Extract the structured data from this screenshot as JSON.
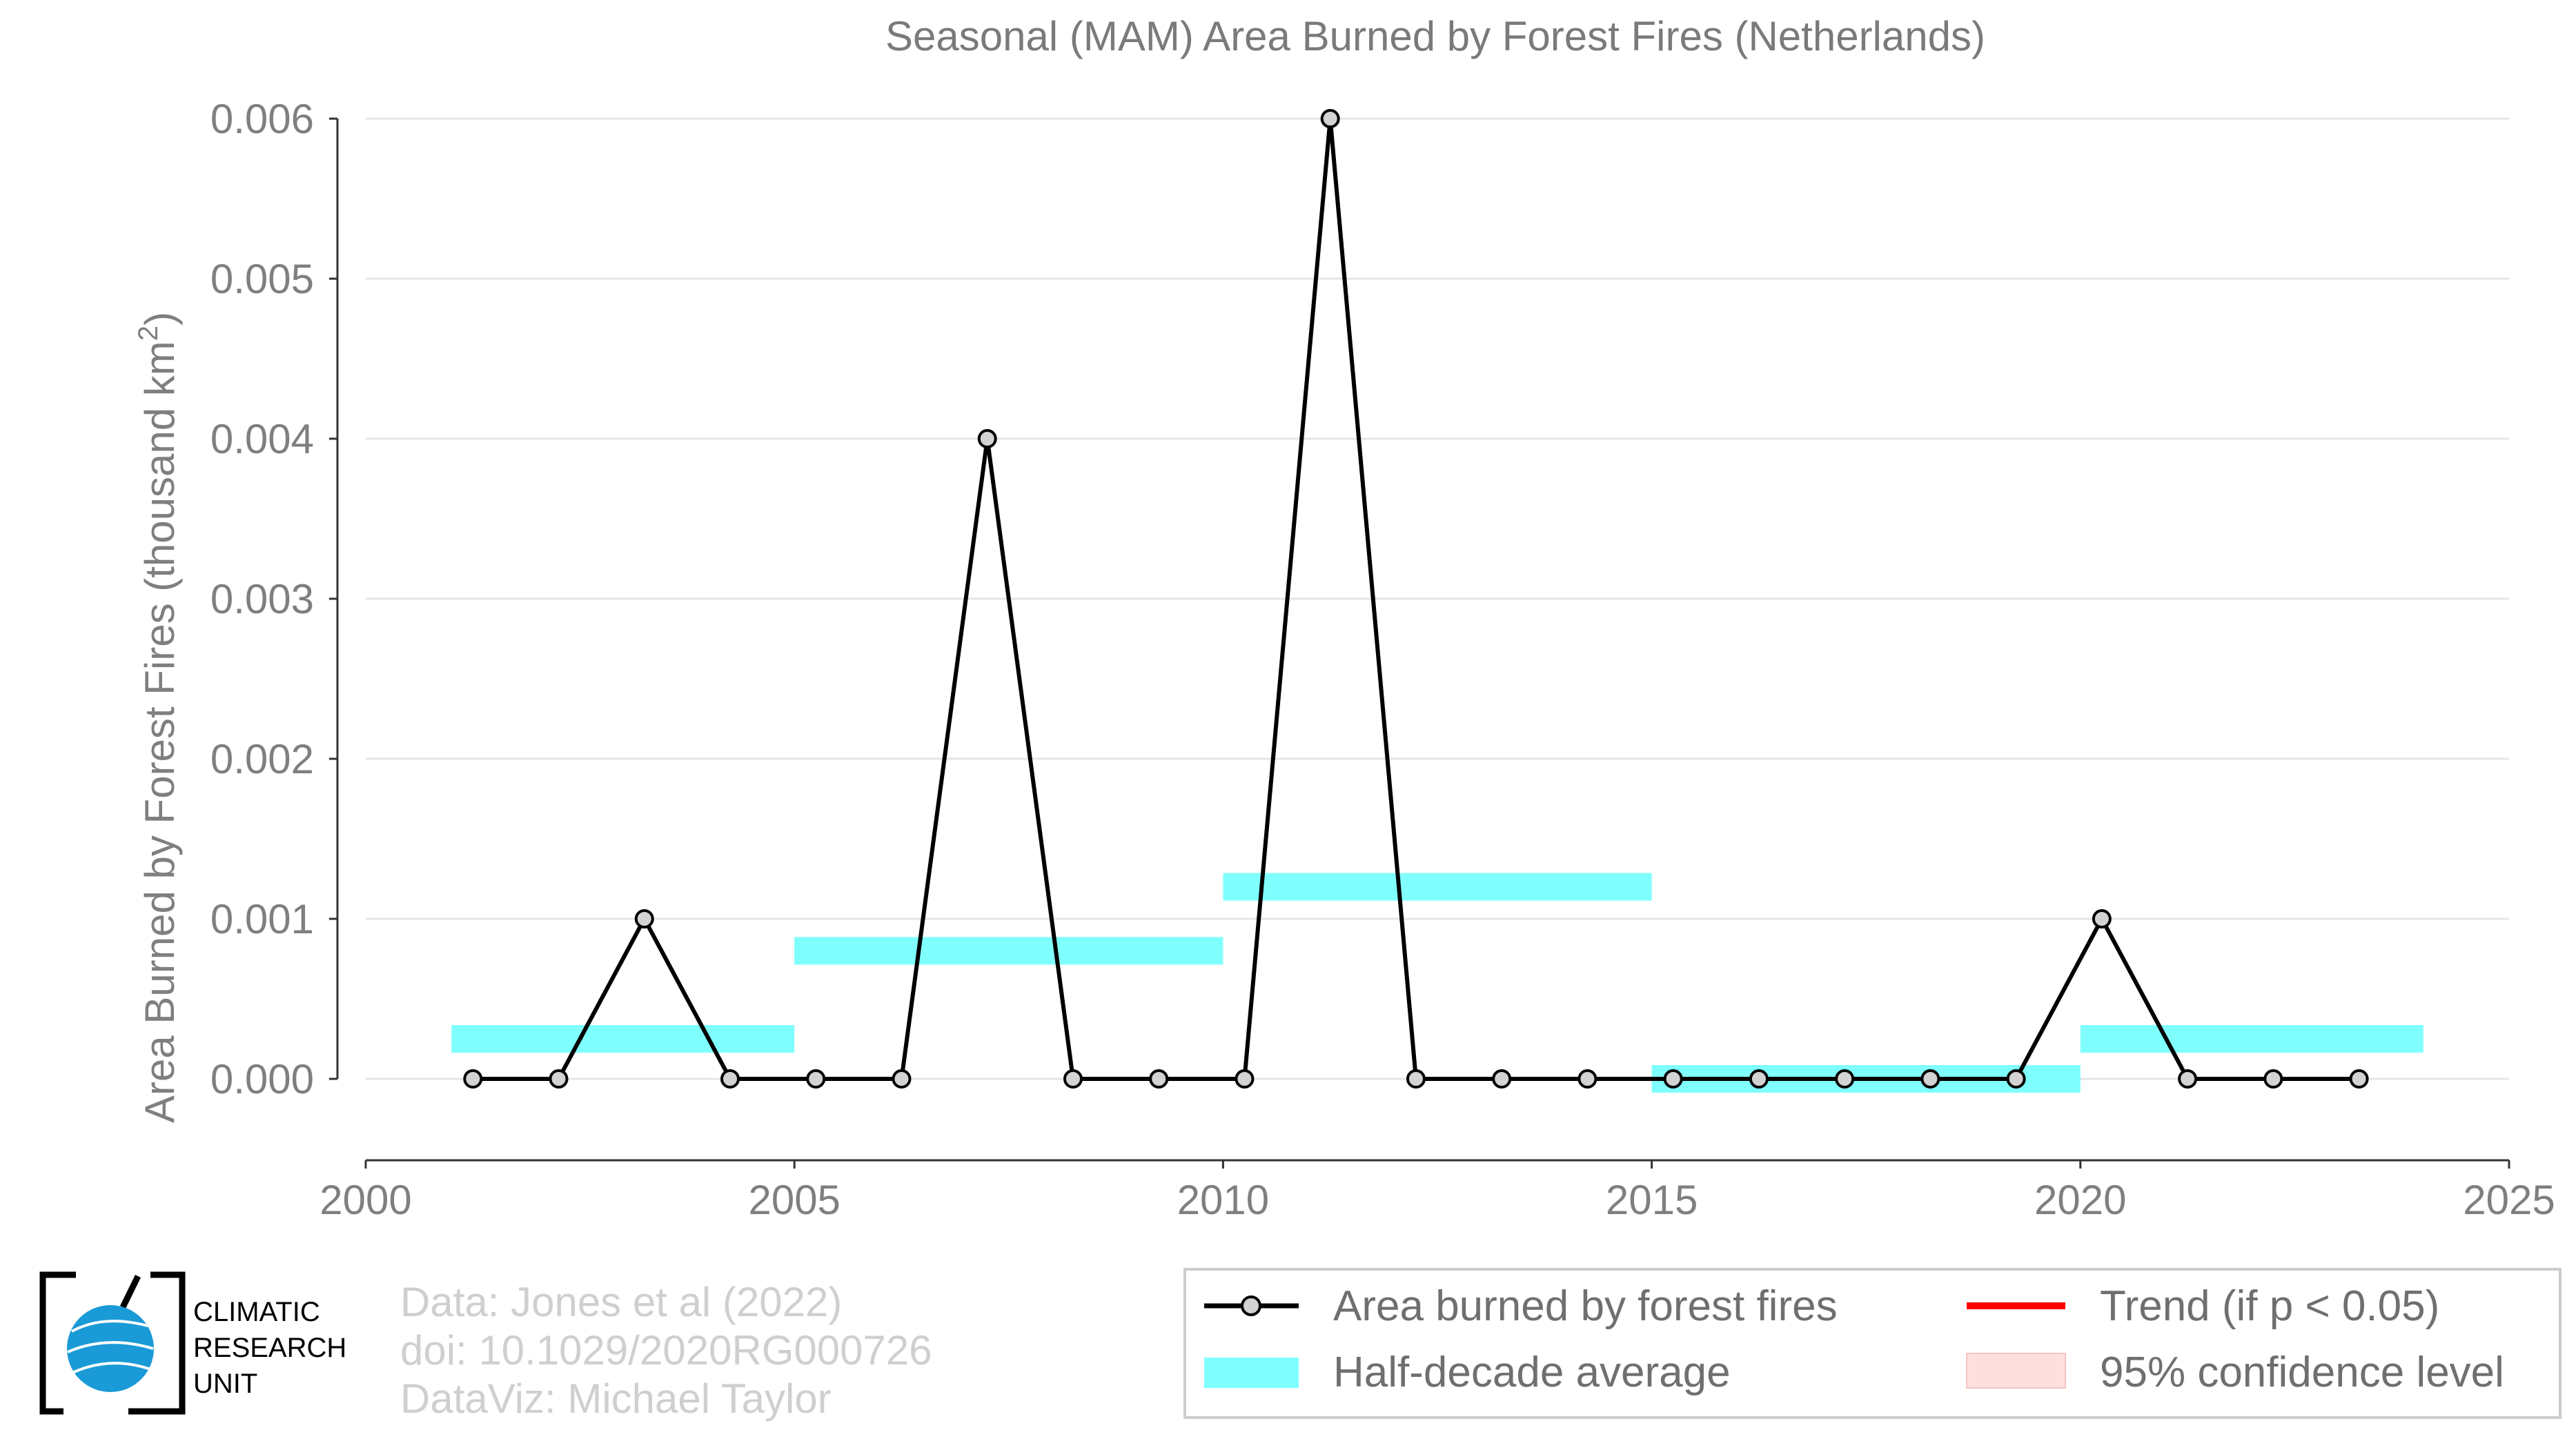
{
  "chart_data": {
    "type": "line",
    "title": "Seasonal (MAM) Area Burned by Forest Fires (Netherlands)",
    "ylabel": "Area Burned by Forest Fires (thousand km",
    "ylabel_superscript": "2",
    "ylabel_close": ")",
    "xlabel": "",
    "xlim": [
      2000,
      2025
    ],
    "ylim": [
      -0.00047,
      0.0061
    ],
    "xticks": [
      2000,
      2005,
      2010,
      2015,
      2020,
      2025
    ],
    "xtick_labels": [
      "2000",
      "2005",
      "2010",
      "2015",
      "2020",
      "2025"
    ],
    "yticks": [
      0,
      0.001,
      0.002,
      0.003,
      0.004,
      0.005,
      0.006
    ],
    "ytick_labels": [
      "0.000",
      "0.001",
      "0.002",
      "0.003",
      "0.004",
      "0.005",
      "0.006"
    ],
    "grid": "horizontal",
    "series": [
      {
        "name": "Area burned by forest fires",
        "color": "#000000",
        "marker_fill": "#d3d3d3",
        "x": [
          2001.25,
          2002.25,
          2003.25,
          2004.25,
          2005.25,
          2006.25,
          2007.25,
          2008.25,
          2009.25,
          2010.25,
          2011.25,
          2012.25,
          2013.25,
          2014.25,
          2015.25,
          2016.25,
          2017.25,
          2018.25,
          2019.25,
          2020.25,
          2021.25,
          2022.25,
          2023.25
        ],
        "y": [
          0,
          0,
          0.001,
          0,
          0,
          0,
          0.004,
          0,
          0,
          0,
          0.006,
          0,
          0,
          0,
          0,
          0,
          0,
          0,
          0,
          0.001,
          0,
          0,
          0
        ]
      }
    ],
    "half_decade_average": {
      "name": "Half-decade average",
      "color": "#80ffff",
      "segments": [
        {
          "x_start": 2001,
          "x_end": 2005,
          "value": 0.00025
        },
        {
          "x_start": 2005,
          "x_end": 2010,
          "value": 0.0008
        },
        {
          "x_start": 2010,
          "x_end": 2015,
          "value": 0.0012
        },
        {
          "x_start": 2015,
          "x_end": 2020,
          "value": 0.0
        },
        {
          "x_start": 2020,
          "x_end": 2024,
          "value": 0.00025
        }
      ]
    },
    "legend": {
      "placement": "bottom-right",
      "entries": [
        {
          "label": "Area burned by forest fires",
          "kind": "line-marker",
          "color": "#000000"
        },
        {
          "label": "Trend (if p < 0.05)",
          "kind": "line",
          "color": "#ff0000"
        },
        {
          "label": "Half-decade average",
          "kind": "patch",
          "color": "#80ffff"
        },
        {
          "label": "95% confidence level",
          "kind": "patch",
          "color": "#ffdede"
        }
      ]
    }
  },
  "credits": {
    "line1": "Data: Jones et al (2022)",
    "line2": "doi: 10.1029/2020RG000726",
    "line3": "DataViz: Michael Taylor"
  },
  "logo": {
    "line1": "CLIMATIC",
    "line2": "RESEARCH",
    "line3": "UNIT",
    "globe_color": "#1a9ad6"
  }
}
